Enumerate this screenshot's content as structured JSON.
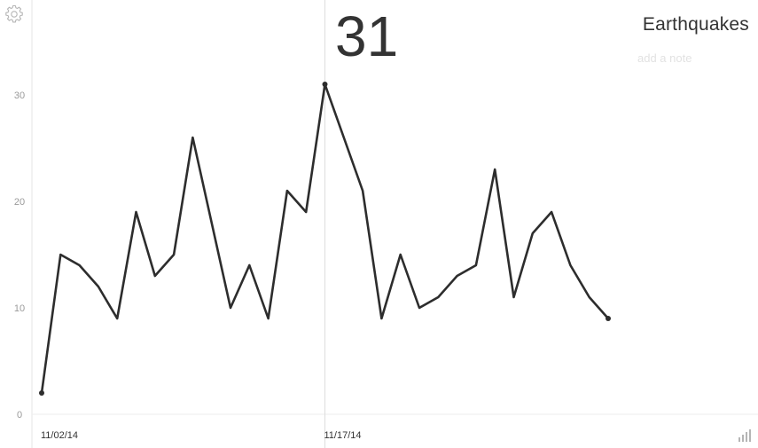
{
  "header": {
    "title": "Earthquakes",
    "note_placeholder": "add a note",
    "highlight_value": "31"
  },
  "controls": {
    "settings_icon": "gear-icon",
    "chart_type_icon": "bar-chart-icon"
  },
  "colors": {
    "line": "#2d2d2d",
    "axis": "#e6e6e6",
    "tick_label": "#9a9a9a",
    "date_label": "#333333",
    "icon": "#b5b5b5"
  },
  "chart_data": {
    "type": "line",
    "title": "Earthquakes",
    "xlabel": "",
    "ylabel": "",
    "ylim": [
      0,
      35
    ],
    "yticks": [
      0,
      10,
      20,
      30
    ],
    "grid": false,
    "x_tick_labels": [
      {
        "index": 0,
        "label": "11/02/14"
      },
      {
        "index": 15,
        "label": "11/17/14"
      }
    ],
    "highlight_index": 15,
    "series": [
      {
        "values": [
          2,
          15,
          14,
          12,
          9,
          19,
          13,
          15,
          26,
          18,
          10,
          14,
          9,
          21,
          19,
          31,
          26,
          21,
          9,
          15,
          10,
          11,
          13,
          14,
          23,
          11,
          17,
          19,
          14,
          11,
          9
        ]
      }
    ]
  }
}
